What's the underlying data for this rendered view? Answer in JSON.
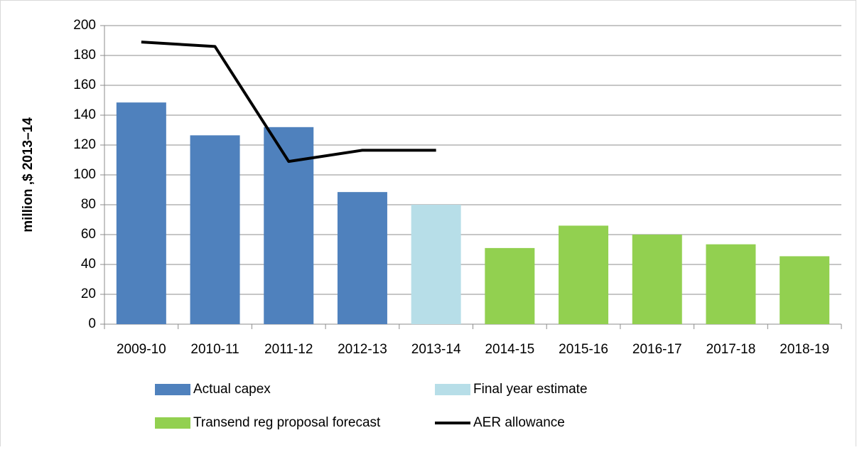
{
  "chart_data": {
    "type": "bar",
    "y_label": "million ,$ 2013–14",
    "categories": [
      "2009-10",
      "2010-11",
      "2011-12",
      "2012-13",
      "2013-14",
      "2014-15",
      "2015-16",
      "2016-17",
      "2017-18",
      "2018-19"
    ],
    "series": [
      {
        "name": "Actual capex",
        "type": "bar",
        "color": "#4f81bd",
        "values": [
          148.5,
          126.5,
          132,
          88.5,
          null,
          null,
          null,
          null,
          null,
          null
        ]
      },
      {
        "name": "Final year estimate",
        "type": "bar",
        "color": "#b7dee8",
        "values": [
          null,
          null,
          null,
          null,
          80,
          null,
          null,
          null,
          null,
          null
        ]
      },
      {
        "name": "Transend reg proposal forecast",
        "type": "bar",
        "color": "#92d050",
        "values": [
          null,
          null,
          null,
          null,
          null,
          51,
          66,
          60,
          53.5,
          45.5
        ]
      },
      {
        "name": "AER allowance",
        "type": "line",
        "color": "#000000",
        "values": [
          189,
          186,
          109,
          116.5,
          116.5,
          null,
          null,
          null,
          null,
          null
        ]
      }
    ],
    "ylim": [
      0,
      200
    ],
    "yticks": [
      0,
      20,
      40,
      60,
      80,
      100,
      120,
      140,
      160,
      180,
      200
    ],
    "grid": true
  }
}
